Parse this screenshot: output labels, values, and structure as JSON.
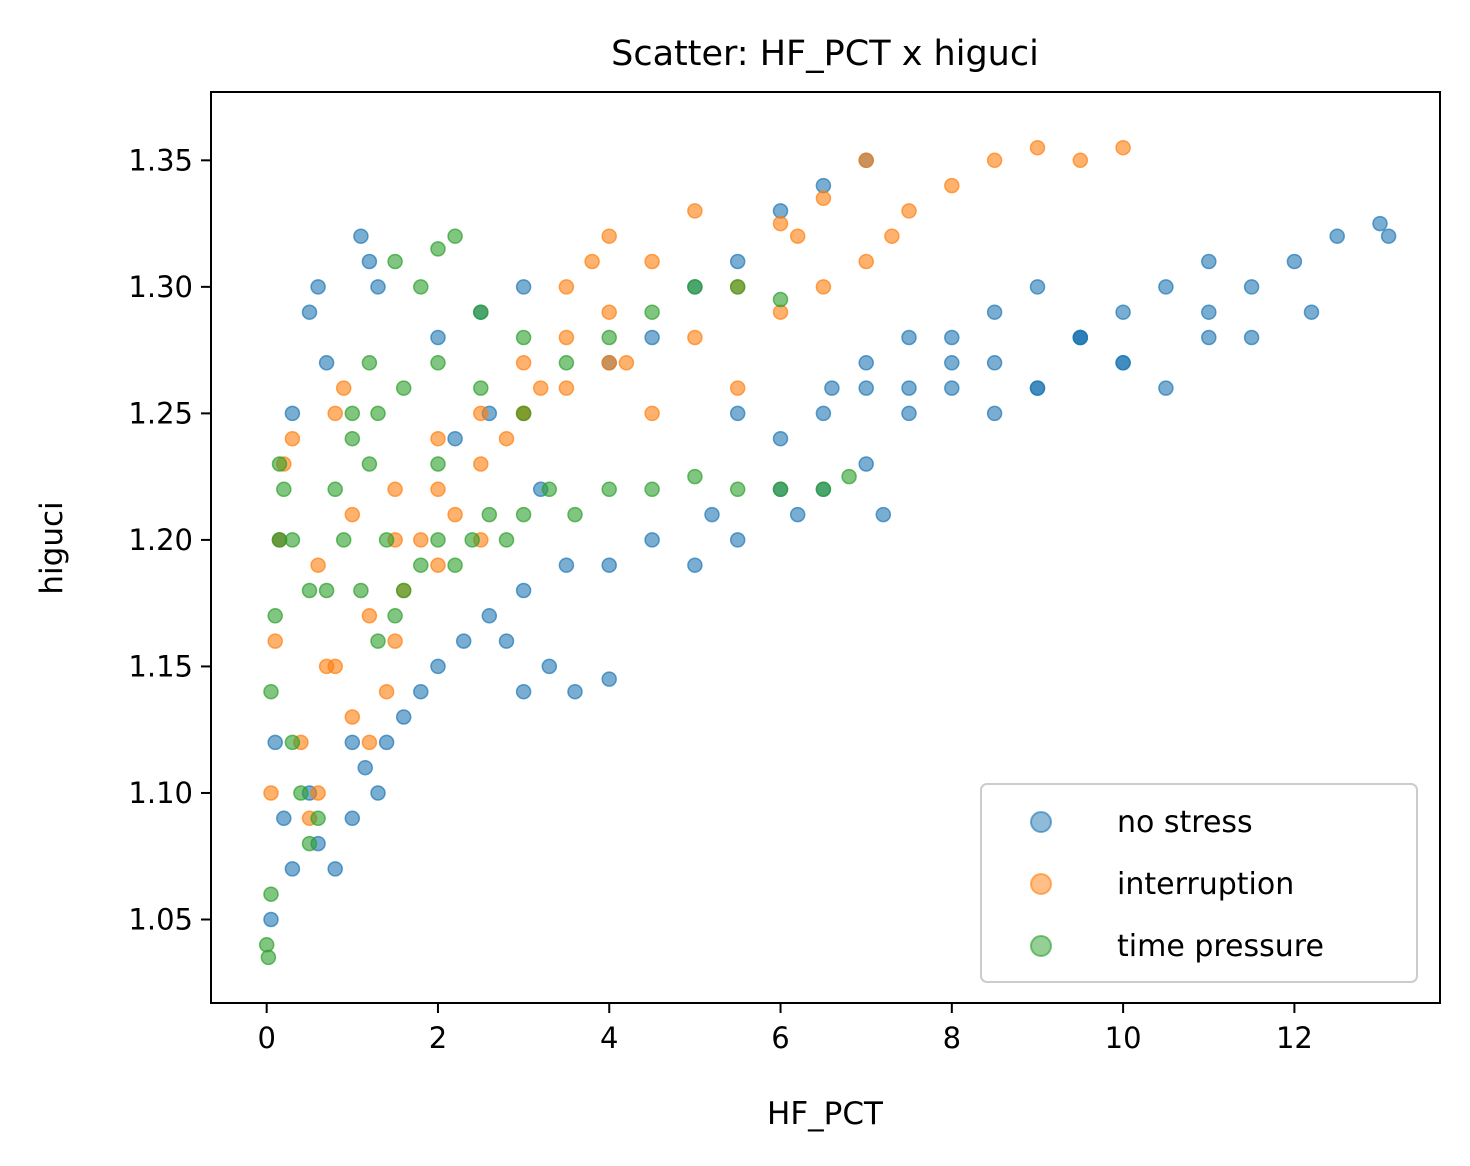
{
  "chart_data": {
    "type": "scatter",
    "title": "Scatter: HF_PCT x higuci",
    "xlabel": "HF_PCT",
    "ylabel": "higuci",
    "xlim": [
      -0.65,
      13.7
    ],
    "ylim": [
      1.017,
      1.377
    ],
    "xticks": [
      0,
      2,
      4,
      6,
      8,
      10,
      12
    ],
    "xtick_labels": [
      "0",
      "2",
      "4",
      "6",
      "8",
      "10",
      "12"
    ],
    "yticks": [
      1.05,
      1.1,
      1.15,
      1.2,
      1.25,
      1.3,
      1.35
    ],
    "ytick_labels": [
      "1.05",
      "1.10",
      "1.15",
      "1.20",
      "1.25",
      "1.30",
      "1.35"
    ],
    "grid": false,
    "legend_position": "lower-right",
    "series": [
      {
        "name": "no stress",
        "color": "#1f77b4",
        "x": [
          0.05,
          0.2,
          0.3,
          0.5,
          0.6,
          0.8,
          1.0,
          1.0,
          1.15,
          1.3,
          1.4,
          1.6,
          1.8,
          2.0,
          2.3,
          2.6,
          2.8,
          3.0,
          3.3,
          3.6,
          4.0,
          3.0,
          3.5,
          4.0,
          4.5,
          5.0,
          5.2,
          5.5,
          6.0,
          6.2,
          6.5,
          7.0,
          7.2,
          6.6,
          7.0,
          7.5,
          8.0,
          8.5,
          9.0,
          9.5,
          10.0,
          10.5,
          11.0,
          11.5,
          12.0,
          12.5,
          13.0,
          13.1,
          12.2,
          11.0,
          10.0,
          9.5,
          9.0,
          8.5,
          8.0,
          7.5,
          5.5,
          6.0,
          6.5,
          7.0,
          7.5,
          8.0,
          8.5,
          9.0,
          9.5,
          10.0,
          10.5,
          11.0,
          11.5,
          4.0,
          4.5,
          5.0,
          5.5,
          6.0,
          6.5,
          7.0,
          0.5,
          0.6,
          0.7,
          1.1,
          1.2,
          1.3,
          2.0,
          2.5,
          3.0,
          2.2,
          2.6,
          3.2,
          0.1,
          0.15,
          0.3
        ],
        "y": [
          1.05,
          1.09,
          1.07,
          1.1,
          1.08,
          1.07,
          1.09,
          1.12,
          1.11,
          1.1,
          1.12,
          1.13,
          1.14,
          1.15,
          1.16,
          1.17,
          1.16,
          1.14,
          1.15,
          1.14,
          1.145,
          1.18,
          1.19,
          1.19,
          1.2,
          1.19,
          1.21,
          1.2,
          1.22,
          1.21,
          1.22,
          1.23,
          1.21,
          1.26,
          1.27,
          1.28,
          1.28,
          1.29,
          1.3,
          1.28,
          1.29,
          1.3,
          1.31,
          1.3,
          1.31,
          1.32,
          1.325,
          1.32,
          1.29,
          1.28,
          1.27,
          1.28,
          1.26,
          1.25,
          1.27,
          1.26,
          1.25,
          1.24,
          1.25,
          1.26,
          1.25,
          1.26,
          1.27,
          1.26,
          1.28,
          1.27,
          1.26,
          1.29,
          1.28,
          1.27,
          1.28,
          1.3,
          1.31,
          1.33,
          1.34,
          1.35,
          1.29,
          1.3,
          1.27,
          1.32,
          1.31,
          1.3,
          1.28,
          1.29,
          1.3,
          1.24,
          1.25,
          1.22,
          1.12,
          1.2,
          1.25
        ]
      },
      {
        "name": "interruption",
        "color": "#ff7f0e",
        "x": [
          0.05,
          0.1,
          0.15,
          0.2,
          0.3,
          0.4,
          0.5,
          0.6,
          0.7,
          0.8,
          0.9,
          1.0,
          1.2,
          1.4,
          1.5,
          1.6,
          1.8,
          2.0,
          2.2,
          2.5,
          2.8,
          3.0,
          3.2,
          3.5,
          3.8,
          4.0,
          4.2,
          4.5,
          5.0,
          5.5,
          6.0,
          6.5,
          7.0,
          7.3,
          7.5,
          8.0,
          8.5,
          9.0,
          9.5,
          10.0,
          6.0,
          6.5,
          7.0,
          5.0,
          4.5,
          4.0,
          3.5,
          3.0,
          2.5,
          2.0,
          1.5,
          1.0,
          0.6,
          0.8,
          1.2,
          1.5,
          2.0,
          2.5,
          3.0,
          3.5,
          4.0,
          5.5,
          6.2
        ],
        "y": [
          1.1,
          1.16,
          1.2,
          1.23,
          1.24,
          1.12,
          1.09,
          1.1,
          1.15,
          1.25,
          1.26,
          1.13,
          1.12,
          1.14,
          1.16,
          1.18,
          1.2,
          1.19,
          1.21,
          1.2,
          1.24,
          1.25,
          1.26,
          1.3,
          1.31,
          1.32,
          1.27,
          1.25,
          1.28,
          1.26,
          1.29,
          1.3,
          1.31,
          1.32,
          1.33,
          1.34,
          1.35,
          1.355,
          1.35,
          1.355,
          1.325,
          1.335,
          1.35,
          1.33,
          1.31,
          1.29,
          1.28,
          1.27,
          1.25,
          1.24,
          1.22,
          1.21,
          1.19,
          1.15,
          1.17,
          1.2,
          1.22,
          1.23,
          1.25,
          1.26,
          1.27,
          1.3,
          1.32
        ]
      },
      {
        "name": "time pressure",
        "color": "#2ca02c",
        "x": [
          0.0,
          0.02,
          0.05,
          0.05,
          0.1,
          0.15,
          0.2,
          0.3,
          0.4,
          0.5,
          0.6,
          0.7,
          0.8,
          0.9,
          1.0,
          1.1,
          1.2,
          1.3,
          1.4,
          1.5,
          1.6,
          1.8,
          2.0,
          2.2,
          2.4,
          2.6,
          2.8,
          3.0,
          3.3,
          3.6,
          4.0,
          4.5,
          5.0,
          5.5,
          6.0,
          6.5,
          6.8,
          1.5,
          1.8,
          2.0,
          2.2,
          2.5,
          3.0,
          3.5,
          4.0,
          4.5,
          5.0,
          5.5,
          6.0,
          1.2,
          1.6,
          2.0,
          2.5,
          3.0,
          1.0,
          1.3,
          2.0,
          0.15,
          0.3,
          0.5
        ],
        "y": [
          1.04,
          1.035,
          1.06,
          1.14,
          1.17,
          1.2,
          1.22,
          1.12,
          1.1,
          1.08,
          1.09,
          1.18,
          1.22,
          1.2,
          1.25,
          1.18,
          1.23,
          1.16,
          1.2,
          1.17,
          1.18,
          1.19,
          1.2,
          1.19,
          1.2,
          1.21,
          1.2,
          1.21,
          1.22,
          1.21,
          1.22,
          1.22,
          1.225,
          1.22,
          1.22,
          1.22,
          1.225,
          1.31,
          1.3,
          1.315,
          1.32,
          1.29,
          1.28,
          1.27,
          1.28,
          1.29,
          1.3,
          1.3,
          1.295,
          1.27,
          1.26,
          1.27,
          1.26,
          1.25,
          1.24,
          1.25,
          1.23,
          1.23,
          1.2,
          1.18
        ]
      }
    ]
  }
}
